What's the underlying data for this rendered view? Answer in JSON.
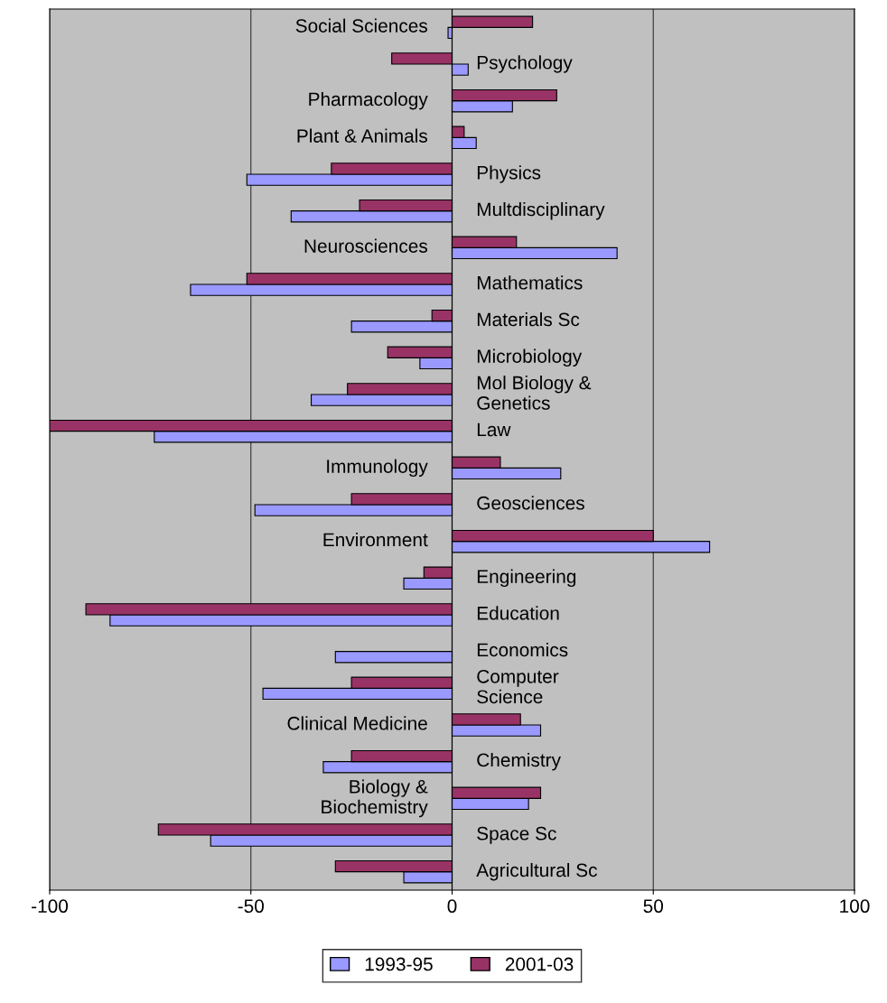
{
  "chart_data": {
    "type": "bar",
    "orientation": "horizontal",
    "categories": [
      "Social Sciences",
      "Psychology",
      "Pharmacology",
      "Plant & Animals",
      "Physics",
      "Multdisciplinary",
      "Neurosciences",
      "Mathematics",
      "Materials Sc",
      "Microbiology",
      "Mol Biology &\nGenetics",
      "Law",
      "Immunology",
      "Geosciences",
      "Environment",
      "Engineering",
      "Education",
      "Economics",
      "Computer\nScience",
      "Clinical Medicine",
      "Chemistry",
      "Biology &\nBiochemistry",
      "Space Sc",
      "Agricultural Sc"
    ],
    "series": [
      {
        "name": "1993-95",
        "color": "#9999ff",
        "values": [
          -1,
          4,
          15,
          6,
          -51,
          -40,
          41,
          -65,
          -25,
          -8,
          -35,
          -74,
          27,
          -49,
          64,
          -12,
          -85,
          -29,
          -47,
          22,
          -32,
          19,
          -60,
          -12
        ]
      },
      {
        "name": "2001-03",
        "color": "#993366",
        "values": [
          20,
          -15,
          26,
          3,
          -30,
          -23,
          16,
          -51,
          -5,
          -16,
          -26,
          -100,
          12,
          -25,
          50,
          -7,
          -91,
          null,
          -25,
          17,
          -25,
          22,
          -73,
          -29
        ]
      }
    ],
    "xlim": [
      -100,
      100
    ],
    "xticks": [
      -100,
      -50,
      0,
      50,
      100
    ],
    "grid": "x",
    "legend": "bottom"
  }
}
